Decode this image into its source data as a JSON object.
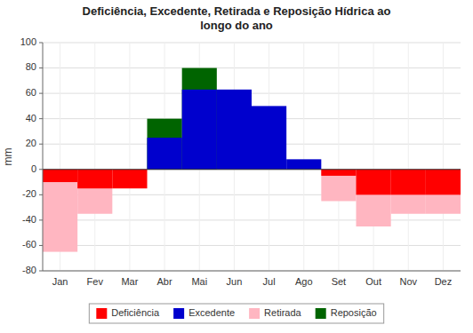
{
  "chart_data": {
    "type": "bar",
    "title": "Deficiência, Excedente, Retirada e Reposição Hídrica ao\nlongo do ano",
    "y_label": "mm",
    "categories": [
      "Jan",
      "Fev",
      "Mar",
      "Abr",
      "Mai",
      "Jun",
      "Jul",
      "Ago",
      "Set",
      "Out",
      "Nov",
      "Dez"
    ],
    "series": [
      {
        "name": "Deficiência",
        "color": "#FF0000",
        "values": [
          -10,
          -15,
          -15,
          0,
          0,
          0,
          0,
          0,
          -5,
          -20,
          -20,
          -20
        ]
      },
      {
        "name": "Excedente",
        "color": "#0000CD",
        "values": [
          0,
          0,
          0,
          25,
          63,
          63,
          50,
          8,
          0,
          0,
          0,
          0
        ]
      },
      {
        "name": "Retirada",
        "color": "#FFB6C1",
        "values": [
          -65,
          -35,
          0,
          0,
          0,
          0,
          0,
          0,
          -25,
          -45,
          -35,
          -35
        ]
      },
      {
        "name": "Reposição",
        "color": "#006400",
        "values": [
          0,
          0,
          0,
          40,
          80,
          0,
          0,
          0,
          0,
          0,
          0,
          0
        ]
      }
    ],
    "ylim": [
      -80,
      100
    ],
    "yticks": [
      -80,
      -60,
      -40,
      -20,
      0,
      20,
      40,
      60,
      80,
      100
    ],
    "grid": true,
    "legend": "bottom"
  }
}
